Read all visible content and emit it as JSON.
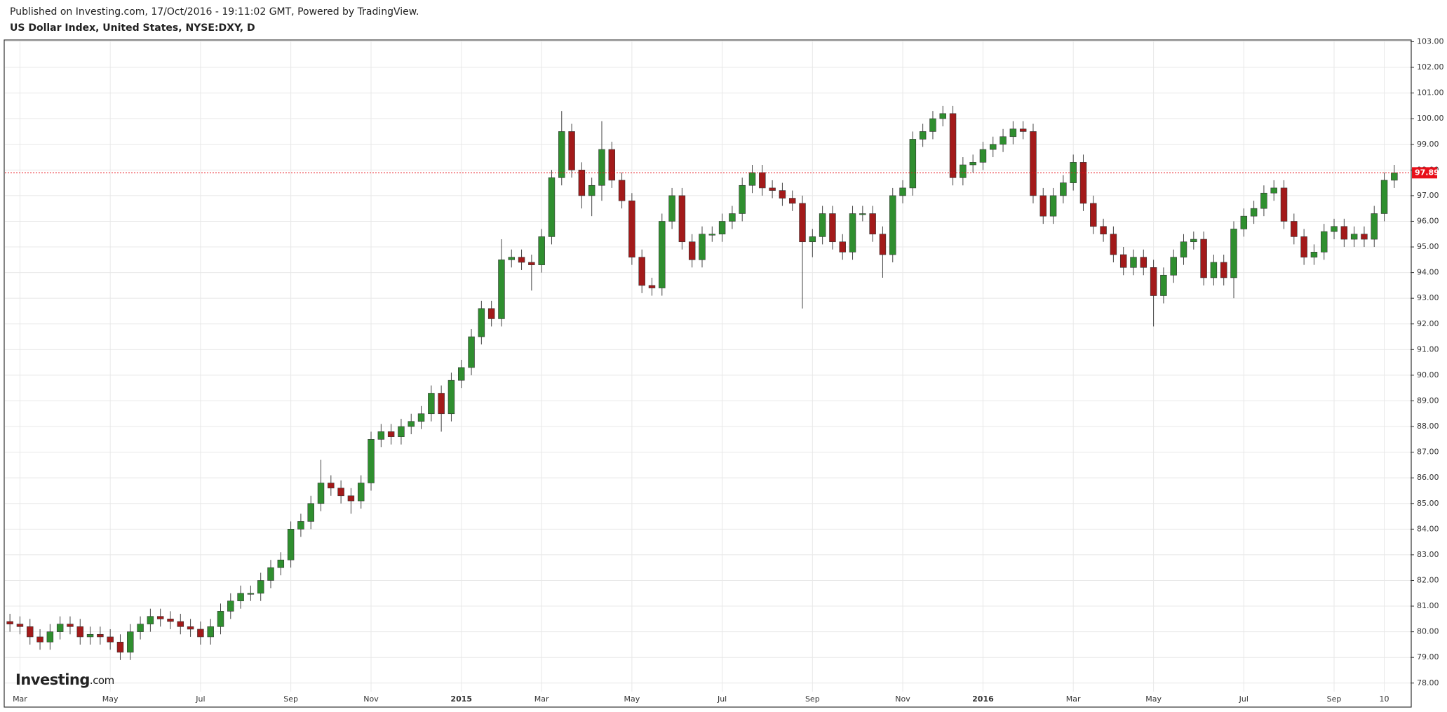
{
  "header": {
    "published": "Published on Investing.com, 17/Oct/2016 - 19:11:02 GMT, Powered by TradingView.",
    "symbol": "US Dollar Index, United States, NYSE:DXY, D"
  },
  "chart_data": {
    "type": "candlestick",
    "watermark": "Investing",
    "watermark_suffix": ".com",
    "up_color": "#2f8f2f",
    "down_color": "#a31a1a",
    "grid": true,
    "last_price": 97.89,
    "last_price_color": "#e8101a",
    "ylim": [
      77.72,
      103.04
    ],
    "yticks": [
      {
        "value": 78,
        "label": "78.00"
      },
      {
        "value": 79,
        "label": "79.00"
      },
      {
        "value": 80,
        "label": "80.00"
      },
      {
        "value": 81,
        "label": "81.00"
      },
      {
        "value": 82,
        "label": "82.00"
      },
      {
        "value": 83,
        "label": "83.00"
      },
      {
        "value": 84,
        "label": "84.00"
      },
      {
        "value": 85,
        "label": "85.00"
      },
      {
        "value": 86,
        "label": "86.00"
      },
      {
        "value": 87,
        "label": "87.00"
      },
      {
        "value": 88,
        "label": "88.00"
      },
      {
        "value": 89,
        "label": "89.00"
      },
      {
        "value": 90,
        "label": "90.00"
      },
      {
        "value": 91,
        "label": "91.00"
      },
      {
        "value": 92,
        "label": "92.00"
      },
      {
        "value": 93,
        "label": "93.00"
      },
      {
        "value": 94,
        "label": "94.00"
      },
      {
        "value": 95,
        "label": "95.00"
      },
      {
        "value": 96,
        "label": "96.00"
      },
      {
        "value": 97,
        "label": "97.00"
      },
      {
        "value": 98,
        "label": "98.00"
      },
      {
        "value": 99,
        "label": "99.00"
      },
      {
        "value": 100,
        "label": "100.00"
      },
      {
        "value": 101,
        "label": "101.00"
      },
      {
        "value": 102,
        "label": "102.00"
      },
      {
        "value": 103,
        "label": "103.00"
      }
    ],
    "categories": [
      null,
      "Mar",
      null,
      null,
      null,
      null,
      null,
      null,
      null,
      null,
      "May",
      null,
      null,
      null,
      null,
      null,
      null,
      null,
      null,
      "Jul",
      null,
      null,
      null,
      null,
      null,
      null,
      null,
      null,
      "Sep",
      null,
      null,
      null,
      null,
      null,
      null,
      null,
      "Nov",
      null,
      null,
      null,
      null,
      null,
      null,
      null,
      null,
      "2015",
      null,
      null,
      null,
      null,
      null,
      null,
      null,
      "Mar",
      null,
      null,
      null,
      null,
      null,
      null,
      null,
      null,
      "May",
      null,
      null,
      null,
      null,
      null,
      null,
      null,
      null,
      "Jul",
      null,
      null,
      null,
      null,
      null,
      null,
      null,
      null,
      "Sep",
      null,
      null,
      null,
      null,
      null,
      null,
      null,
      null,
      "Nov",
      null,
      null,
      null,
      null,
      null,
      null,
      null,
      "2016",
      null,
      null,
      null,
      null,
      null,
      null,
      null,
      null,
      "Mar",
      null,
      null,
      null,
      null,
      null,
      null,
      null,
      "May",
      null,
      null,
      null,
      null,
      null,
      null,
      null,
      null,
      "Jul",
      null,
      null,
      null,
      null,
      null,
      null,
      null,
      null,
      "Sep",
      null,
      null,
      null,
      null,
      "10",
      null
    ],
    "open": [
      80.4,
      80.3,
      80.2,
      79.8,
      79.6,
      80.0,
      80.3,
      80.2,
      79.8,
      79.9,
      79.8,
      79.6,
      79.2,
      80.0,
      80.3,
      80.6,
      80.5,
      80.4,
      80.2,
      80.1,
      79.8,
      80.2,
      80.8,
      81.2,
      81.5,
      81.5,
      82.0,
      82.5,
      82.8,
      84.0,
      84.3,
      85.0,
      85.8,
      85.6,
      85.3,
      85.1,
      85.8,
      87.5,
      87.8,
      87.6,
      88.0,
      88.2,
      88.5,
      89.3,
      88.5,
      89.8,
      90.3,
      91.5,
      92.6,
      92.2,
      94.5,
      94.6,
      94.4,
      94.3,
      95.4,
      97.7,
      99.5,
      98.0,
      97.0,
      97.4,
      98.8,
      97.6,
      96.8,
      94.6,
      93.5,
      93.4,
      96.0,
      97.0,
      95.2,
      94.5,
      95.5,
      95.5,
      96.0,
      96.3,
      97.4,
      97.9,
      97.3,
      97.2,
      96.9,
      96.7,
      95.2,
      95.4,
      96.3,
      95.2,
      94.8,
      96.3,
      96.3,
      95.5,
      94.7,
      97.0,
      97.3,
      99.2,
      99.5,
      100.0,
      100.2,
      97.7,
      98.2,
      98.3,
      98.8,
      99.0,
      99.3,
      99.6,
      99.5,
      97.0,
      96.2,
      97.0,
      97.5,
      98.3,
      96.7,
      95.8,
      95.5,
      94.7,
      94.2,
      94.6,
      94.2,
      93.1,
      93.9,
      94.6,
      95.2,
      95.3,
      93.8,
      94.4,
      93.8,
      95.7,
      96.2,
      96.5,
      97.1,
      97.3,
      96.0,
      95.4,
      94.6,
      94.8,
      95.6,
      95.8,
      95.3,
      95.5,
      95.3,
      96.3,
      97.6
    ],
    "high": [
      80.7,
      80.6,
      80.5,
      80.1,
      80.3,
      80.6,
      80.6,
      80.5,
      80.2,
      80.2,
      80.1,
      79.9,
      80.3,
      80.6,
      80.9,
      80.9,
      80.8,
      80.7,
      80.5,
      80.4,
      80.5,
      81.1,
      81.5,
      81.8,
      81.8,
      82.3,
      82.8,
      83.1,
      84.3,
      84.6,
      85.3,
      86.7,
      86.1,
      85.9,
      85.6,
      86.1,
      87.8,
      88.1,
      88.1,
      88.3,
      88.5,
      88.8,
      89.6,
      89.6,
      90.1,
      90.6,
      91.8,
      92.9,
      92.9,
      95.3,
      94.9,
      94.9,
      94.7,
      95.7,
      98.0,
      100.3,
      99.8,
      98.3,
      97.7,
      99.9,
      99.1,
      97.9,
      97.1,
      94.9,
      93.8,
      96.3,
      97.3,
      97.3,
      95.5,
      95.8,
      95.8,
      96.3,
      96.6,
      97.7,
      98.2,
      98.2,
      97.6,
      97.5,
      97.2,
      97.0,
      95.7,
      96.6,
      96.6,
      95.5,
      96.6,
      96.6,
      96.6,
      95.8,
      97.3,
      97.6,
      99.5,
      99.8,
      100.3,
      100.5,
      100.5,
      98.5,
      98.6,
      99.1,
      99.3,
      99.6,
      99.9,
      99.9,
      99.8,
      97.3,
      97.3,
      97.8,
      98.6,
      98.6,
      97.0,
      96.1,
      95.8,
      95.0,
      94.9,
      94.9,
      94.5,
      94.2,
      94.9,
      95.5,
      95.6,
      95.6,
      94.7,
      94.7,
      96.0,
      96.5,
      96.8,
      97.4,
      97.6,
      97.6,
      96.3,
      95.7,
      95.1,
      95.9,
      96.1,
      96.1,
      95.8,
      95.8,
      96.6,
      97.9,
      98.2
    ],
    "low": [
      80.0,
      79.9,
      79.5,
      79.3,
      79.3,
      79.7,
      79.9,
      79.5,
      79.5,
      79.5,
      79.3,
      78.9,
      78.9,
      79.7,
      80.0,
      80.2,
      80.1,
      79.9,
      79.8,
      79.5,
      79.5,
      79.9,
      80.5,
      80.9,
      81.2,
      81.2,
      81.7,
      82.2,
      82.5,
      83.7,
      84.0,
      84.7,
      85.3,
      85.0,
      84.6,
      84.8,
      85.5,
      87.2,
      87.3,
      87.3,
      87.7,
      87.9,
      88.2,
      87.8,
      88.2,
      89.5,
      90.0,
      91.2,
      91.9,
      91.9,
      94.2,
      94.1,
      93.3,
      94.0,
      95.1,
      97.4,
      97.7,
      96.5,
      96.2,
      96.8,
      97.3,
      96.5,
      94.3,
      93.2,
      93.1,
      93.1,
      95.7,
      94.9,
      94.2,
      94.2,
      95.2,
      95.2,
      95.7,
      96.0,
      97.1,
      97.0,
      96.9,
      96.6,
      96.4,
      92.6,
      94.6,
      95.1,
      94.9,
      94.5,
      94.5,
      96.0,
      95.2,
      93.8,
      94.4,
      96.7,
      97.0,
      98.9,
      99.2,
      99.7,
      97.4,
      97.4,
      97.9,
      98.0,
      98.5,
      98.7,
      99.0,
      99.2,
      96.7,
      95.9,
      95.9,
      96.7,
      97.2,
      96.4,
      95.5,
      95.2,
      94.4,
      93.9,
      93.9,
      93.9,
      91.9,
      92.8,
      93.6,
      94.3,
      94.9,
      93.5,
      93.5,
      93.5,
      93.0,
      95.4,
      95.9,
      96.2,
      96.8,
      95.7,
      95.1,
      94.3,
      94.3,
      94.5,
      95.3,
      95.0,
      95.0,
      95.0,
      95.0,
      96.0,
      97.3
    ],
    "close": [
      80.3,
      80.2,
      79.8,
      79.6,
      80.0,
      80.3,
      80.2,
      79.8,
      79.9,
      79.8,
      79.6,
      79.2,
      80.0,
      80.3,
      80.6,
      80.5,
      80.4,
      80.2,
      80.1,
      79.8,
      80.2,
      80.8,
      81.2,
      81.5,
      81.5,
      82.0,
      82.5,
      82.8,
      84.0,
      84.3,
      85.0,
      85.8,
      85.6,
      85.3,
      85.1,
      85.8,
      87.5,
      87.8,
      87.6,
      88.0,
      88.2,
      88.5,
      89.3,
      88.5,
      89.8,
      90.3,
      91.5,
      92.6,
      92.2,
      94.5,
      94.6,
      94.4,
      94.3,
      95.4,
      97.7,
      99.5,
      98.0,
      97.0,
      97.4,
      98.8,
      97.6,
      96.8,
      94.6,
      93.5,
      93.4,
      96.0,
      97.0,
      95.2,
      94.5,
      95.5,
      95.5,
      96.0,
      96.3,
      97.4,
      97.9,
      97.3,
      97.2,
      96.9,
      96.7,
      95.2,
      95.4,
      96.3,
      95.2,
      94.8,
      96.3,
      96.3,
      95.5,
      94.7,
      97.0,
      97.3,
      99.2,
      99.5,
      100.0,
      100.2,
      97.7,
      98.2,
      98.3,
      98.8,
      99.0,
      99.3,
      99.6,
      99.5,
      97.0,
      96.2,
      97.0,
      97.5,
      98.3,
      96.7,
      95.8,
      95.5,
      94.7,
      94.2,
      94.6,
      94.2,
      93.1,
      93.9,
      94.6,
      95.2,
      95.3,
      93.8,
      94.4,
      93.8,
      95.7,
      96.2,
      96.5,
      97.1,
      97.3,
      96.0,
      95.4,
      94.6,
      94.8,
      95.6,
      95.8,
      95.3,
      95.5,
      95.3,
      96.3,
      97.6,
      97.89
    ]
  }
}
